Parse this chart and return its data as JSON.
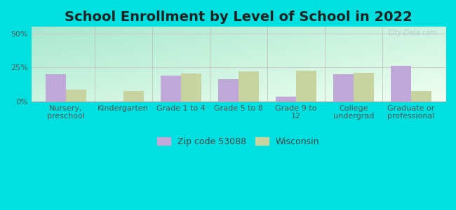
{
  "title": "School Enrollment by Level of School in 2022",
  "categories": [
    "Nursery,\npreschool",
    "Kindergarten",
    "Grade 1 to 4",
    "Grade 5 to 8",
    "Grade 9 to\n12",
    "College\nundergrad",
    "Graduate or\nprofessional"
  ],
  "zip_values": [
    20.0,
    0.0,
    19.0,
    16.5,
    3.5,
    20.0,
    26.0
  ],
  "wi_values": [
    8.5,
    7.5,
    20.5,
    22.0,
    22.5,
    21.0,
    7.5
  ],
  "zip_color": "#c0a8d8",
  "wi_color": "#c8d4a0",
  "background_color": "#00e0e0",
  "grad_top_left": "#a8e8d0",
  "grad_bottom_right": "#f0fff0",
  "ylim": [
    0,
    55
  ],
  "yticks": [
    0,
    25,
    50
  ],
  "ytick_labels": [
    "0%",
    "25%",
    "50%"
  ],
  "watermark": "City-Data.com",
  "legend_zip_label": "Zip code 53088",
  "legend_wi_label": "Wisconsin",
  "bar_width": 0.35,
  "title_fontsize": 14,
  "tick_fontsize": 8,
  "legend_fontsize": 9,
  "grid_color": "#cccccc",
  "separator_color": "#bbbbbb"
}
